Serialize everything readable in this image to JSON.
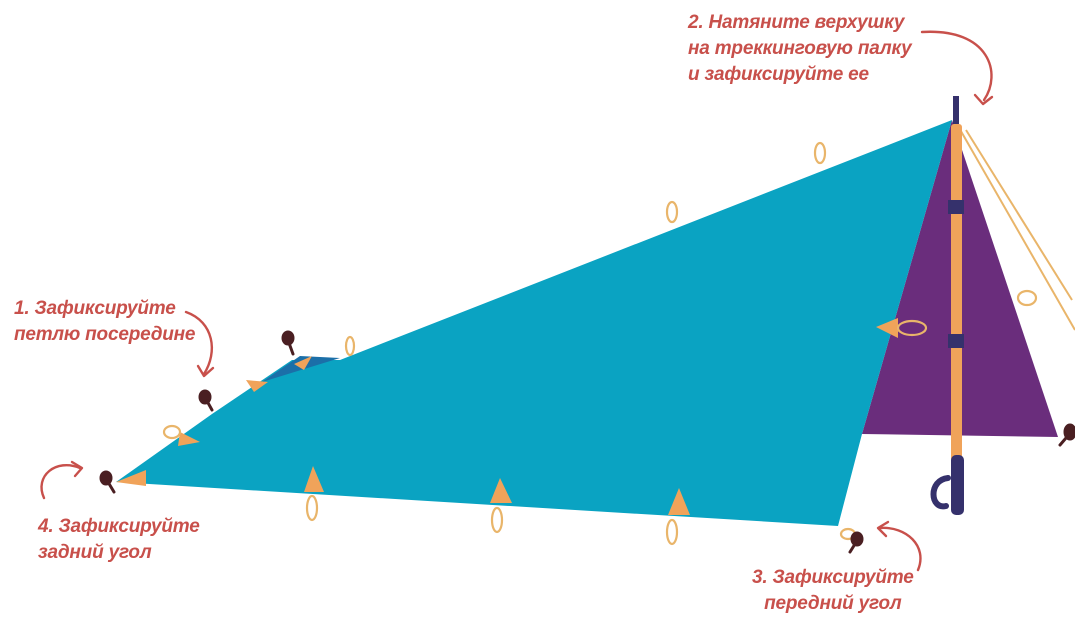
{
  "steps": [
    {
      "lines": [
        "1. Зафиксируйте",
        "петлю посередине"
      ]
    },
    {
      "lines": [
        "2. Натяните верхушку",
        "на треккинговую палку",
        "и зафиксируйте ее"
      ]
    },
    {
      "lines": [
        "3. Зафиксируйте",
        "передний угол"
      ]
    },
    {
      "lines": [
        "4. Зафиксируйте",
        "задний угол"
      ]
    }
  ],
  "colors": {
    "tarp": "#0aa3c2",
    "tarp_inner": "#1b6fa8",
    "side_panel": "#6a2d7c",
    "pole": "#f0a35a",
    "pole_base": "#35316c",
    "stake": "#4a1f22",
    "guyline": "#e9b56a",
    "text_arrow": "#c8504b"
  },
  "icons": [
    "tent-stake-icon",
    "guyline-loop-icon",
    "trekking-pole-icon",
    "curved-arrow-icon"
  ]
}
